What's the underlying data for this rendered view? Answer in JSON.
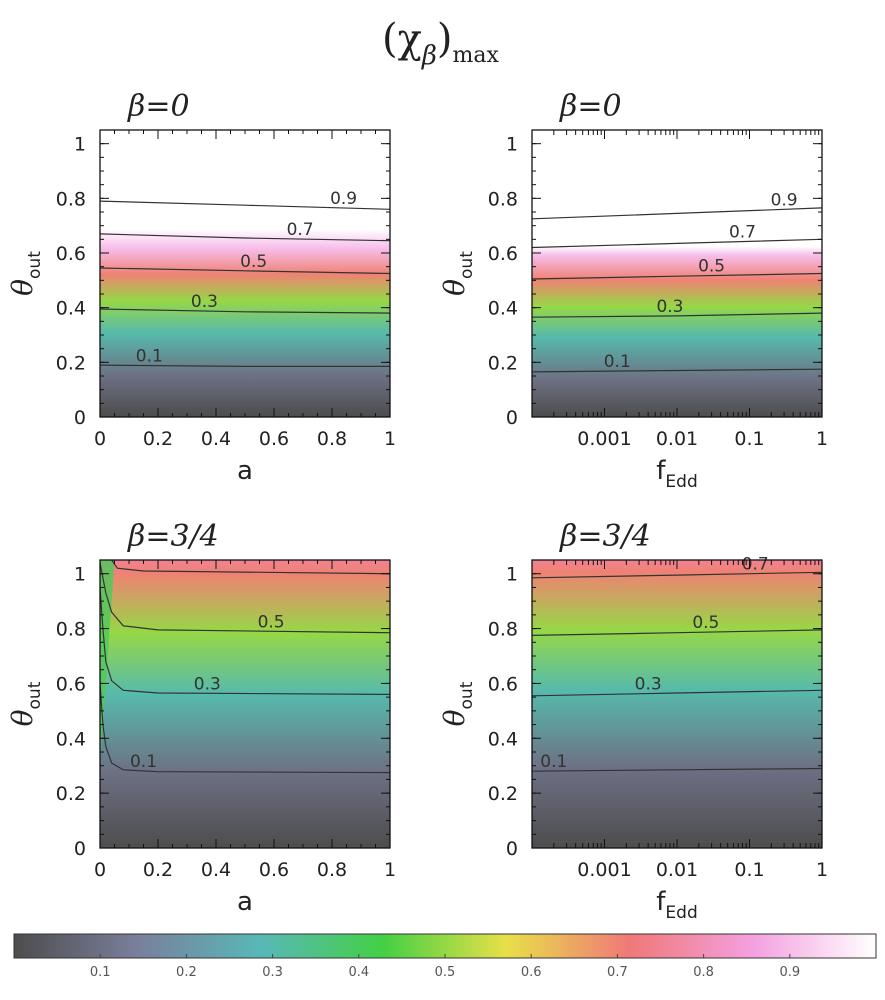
{
  "title": {
    "main": "(χ",
    "sub": "β",
    "suffix": ")",
    "sub2": "max"
  },
  "colormap": [
    "#4d4d4d",
    "#7a7f9c",
    "#58b8b8",
    "#44d044",
    "#e8e048",
    "#f07878",
    "#f4a0e0",
    "#ffffff"
  ],
  "colorbar": {
    "ticks": [
      0.1,
      0.2,
      0.3,
      0.4,
      0.5,
      0.6,
      0.7,
      0.8,
      0.9
    ],
    "tick_labels": [
      "0.1",
      "0.2",
      "0.3",
      "0.4",
      "0.5",
      "0.6",
      "0.7",
      "0.8",
      "0.9"
    ],
    "range": [
      0,
      1
    ]
  },
  "chart_data": [
    {
      "type": "heatmap",
      "title": "β=0",
      "xlabel": "a",
      "ylabel": "θ",
      "ylabel_sub": "out",
      "xscale": "linear",
      "xlim": [
        0,
        1
      ],
      "ylim": [
        0,
        1.05
      ],
      "xticks": [
        0,
        0.2,
        0.4,
        0.6,
        0.8,
        1
      ],
      "xtick_labels": [
        "0",
        "0.2",
        "0.4",
        "0.6",
        "0.8",
        "1"
      ],
      "yticks": [
        0,
        0.2,
        0.4,
        0.6,
        0.8,
        1
      ],
      "ytick_labels": [
        "0",
        "0.2",
        "0.4",
        "0.6",
        "0.8",
        "1"
      ],
      "contours": [
        {
          "level": 0.1,
          "label": "0.1",
          "label_x": 0.17,
          "points": [
            [
              0,
              0.19
            ],
            [
              0.5,
              0.185
            ],
            [
              1,
              0.185
            ]
          ]
        },
        {
          "level": 0.3,
          "label": "0.3",
          "label_x": 0.36,
          "points": [
            [
              0,
              0.395
            ],
            [
              0.5,
              0.385
            ],
            [
              1,
              0.38
            ]
          ]
        },
        {
          "level": 0.5,
          "label": "0.5",
          "label_x": 0.53,
          "points": [
            [
              0,
              0.545
            ],
            [
              0.5,
              0.535
            ],
            [
              1,
              0.525
            ]
          ]
        },
        {
          "level": 0.7,
          "label": "0.7",
          "label_x": 0.69,
          "points": [
            [
              0,
              0.67
            ],
            [
              0.5,
              0.655
            ],
            [
              1,
              0.645
            ]
          ]
        },
        {
          "level": 0.9,
          "label": "0.9",
          "label_x": 0.84,
          "points": [
            [
              0,
              0.79
            ],
            [
              0.5,
              0.775
            ],
            [
              1,
              0.76
            ]
          ]
        }
      ],
      "colorfill_cutoff": [
        [
          0,
          0.85
        ],
        [
          1,
          0.79
        ]
      ]
    },
    {
      "type": "heatmap",
      "title": "β=0",
      "xlabel": "f",
      "xlabel_sub": "Edd",
      "ylabel": "θ",
      "ylabel_sub": "out",
      "xscale": "log",
      "xlim": [
        0.0001,
        1
      ],
      "ylim": [
        0,
        1.05
      ],
      "xticks": [
        0.001,
        0.01,
        0.1,
        1
      ],
      "xtick_labels": [
        "0.001",
        "0.01",
        "0.1",
        "1"
      ],
      "yticks": [
        0,
        0.2,
        0.4,
        0.6,
        0.8,
        1
      ],
      "ytick_labels": [
        "0",
        "0.2",
        "0.4",
        "0.6",
        "0.8",
        "1"
      ],
      "contours": [
        {
          "level": 0.1,
          "label": "0.1",
          "label_x": 0.0015,
          "points": [
            [
              0.0001,
              0.165
            ],
            [
              0.01,
              0.17
            ],
            [
              1,
              0.175
            ]
          ]
        },
        {
          "level": 0.3,
          "label": "0.3",
          "label_x": 0.008,
          "points": [
            [
              0.0001,
              0.365
            ],
            [
              0.01,
              0.37
            ],
            [
              1,
              0.38
            ]
          ]
        },
        {
          "level": 0.5,
          "label": "0.5",
          "label_x": 0.03,
          "points": [
            [
              0.0001,
              0.505
            ],
            [
              0.01,
              0.515
            ],
            [
              1,
              0.525
            ]
          ]
        },
        {
          "level": 0.7,
          "label": "0.7",
          "label_x": 0.08,
          "points": [
            [
              0.0001,
              0.62
            ],
            [
              0.01,
              0.635
            ],
            [
              1,
              0.65
            ]
          ]
        },
        {
          "level": 0.9,
          "label": "0.9",
          "label_x": 0.3,
          "points": [
            [
              0.0001,
              0.725
            ],
            [
              0.01,
              0.745
            ],
            [
              1,
              0.765
            ]
          ]
        }
      ],
      "colorfill_cutoff": [
        [
          0.0001,
          0.76
        ],
        [
          1,
          0.81
        ]
      ]
    },
    {
      "type": "heatmap",
      "title": "β=3/4",
      "xlabel": "a",
      "ylabel": "θ",
      "ylabel_sub": "out",
      "xscale": "linear",
      "xlim": [
        0,
        1
      ],
      "ylim": [
        0,
        1.05
      ],
      "xticks": [
        0,
        0.2,
        0.4,
        0.6,
        0.8,
        1
      ],
      "xtick_labels": [
        "0",
        "0.2",
        "0.4",
        "0.6",
        "0.8",
        "1"
      ],
      "yticks": [
        0,
        0.2,
        0.4,
        0.6,
        0.8,
        1
      ],
      "ytick_labels": [
        "0",
        "0.2",
        "0.4",
        "0.6",
        "0.8",
        "1"
      ],
      "contours": [
        {
          "level": 0.1,
          "label": "0.1",
          "label_x": 0.15,
          "points": [
            [
              0.0,
              0.6
            ],
            [
              0.01,
              0.45
            ],
            [
              0.02,
              0.37
            ],
            [
              0.04,
              0.31
            ],
            [
              0.08,
              0.285
            ],
            [
              0.2,
              0.278
            ],
            [
              1,
              0.275
            ]
          ]
        },
        {
          "level": 0.3,
          "label": "0.3",
          "label_x": 0.37,
          "points": [
            [
              0.0,
              0.95
            ],
            [
              0.01,
              0.8
            ],
            [
              0.02,
              0.68
            ],
            [
              0.04,
              0.61
            ],
            [
              0.08,
              0.575
            ],
            [
              0.2,
              0.565
            ],
            [
              1,
              0.56
            ]
          ]
        },
        {
          "level": 0.5,
          "label": "0.5",
          "label_x": 0.59,
          "points": [
            [
              0.0,
              1.04
            ],
            [
              0.02,
              0.93
            ],
            [
              0.04,
              0.86
            ],
            [
              0.08,
              0.81
            ],
            [
              0.2,
              0.795
            ],
            [
              1,
              0.785
            ]
          ]
        },
        {
          "level": 0.7,
          "label": "",
          "label_x": 0.5,
          "points": [
            [
              0.04,
              1.05
            ],
            [
              0.06,
              1.02
            ],
            [
              0.15,
              1.01
            ],
            [
              1,
              1.0
            ]
          ]
        }
      ],
      "green_wedge": true
    },
    {
      "type": "heatmap",
      "title": "β=3/4",
      "xlabel": "f",
      "xlabel_sub": "Edd",
      "ylabel": "θ",
      "ylabel_sub": "out",
      "xscale": "log",
      "xlim": [
        0.0001,
        1
      ],
      "ylim": [
        0,
        1.05
      ],
      "xticks": [
        0.001,
        0.01,
        0.1,
        1
      ],
      "xtick_labels": [
        "0.001",
        "0.01",
        "0.1",
        "1"
      ],
      "yticks": [
        0,
        0.2,
        0.4,
        0.6,
        0.8,
        1
      ],
      "ytick_labels": [
        "0",
        "0.2",
        "0.4",
        "0.6",
        "0.8",
        "1"
      ],
      "contours": [
        {
          "level": 0.1,
          "label": "0.1",
          "label_x": 0.0002,
          "points": [
            [
              0.0001,
              0.28
            ],
            [
              0.01,
              0.285
            ],
            [
              1,
              0.29
            ]
          ]
        },
        {
          "level": 0.3,
          "label": "0.3",
          "label_x": 0.004,
          "points": [
            [
              0.0001,
              0.555
            ],
            [
              0.01,
              0.565
            ],
            [
              1,
              0.575
            ]
          ]
        },
        {
          "level": 0.5,
          "label": "0.5",
          "label_x": 0.025,
          "points": [
            [
              0.0001,
              0.775
            ],
            [
              0.01,
              0.785
            ],
            [
              1,
              0.795
            ]
          ]
        },
        {
          "level": 0.7,
          "label": "0.7",
          "label_x": 0.12,
          "points": [
            [
              0.0001,
              0.985
            ],
            [
              0.01,
              0.995
            ],
            [
              1,
              1.005
            ]
          ]
        }
      ]
    }
  ]
}
